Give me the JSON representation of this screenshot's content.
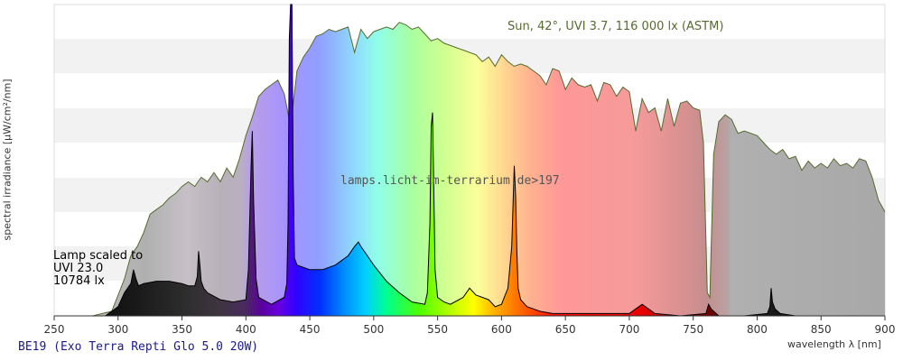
{
  "chart_data": {
    "type": "area",
    "title": "",
    "xlabel": "wavelength λ [nm]",
    "ylabel": "spectral irradiance [µW/cm²/nm]",
    "xlim": [
      250,
      900
    ],
    "x_ticks": [
      250,
      300,
      350,
      400,
      450,
      500,
      550,
      600,
      650,
      700,
      750,
      800,
      850,
      900
    ],
    "grid": "horizontal bands",
    "annotations": {
      "sun": "Sun, 42°, UVI 3.7, 116 000 lx (ASTM)",
      "watermark": "lamps.licht-im-terrarium.de>197",
      "lamp_lines": [
        "Lamp scaled to",
        "UVI 23.0",
        "10784 lx"
      ],
      "caption": "BE19 (Exo Terra Repti Glo 5.0 20W)"
    },
    "series": [
      {
        "name": "Sun, 42°, UVI 3.7, 116 000 lx (ASTM)",
        "color": "#556b2f",
        "x": [
          250,
          280,
          295,
          300,
          305,
          310,
          315,
          320,
          325,
          330,
          335,
          340,
          345,
          350,
          355,
          360,
          365,
          370,
          375,
          380,
          385,
          390,
          395,
          400,
          405,
          410,
          415,
          420,
          425,
          430,
          435,
          440,
          445,
          450,
          455,
          460,
          465,
          470,
          475,
          480,
          485,
          490,
          495,
          500,
          505,
          510,
          515,
          520,
          525,
          530,
          535,
          540,
          545,
          550,
          555,
          560,
          565,
          570,
          575,
          580,
          585,
          590,
          595,
          600,
          605,
          610,
          615,
          620,
          625,
          630,
          635,
          640,
          645,
          650,
          655,
          660,
          665,
          670,
          675,
          680,
          685,
          690,
          695,
          700,
          705,
          710,
          715,
          720,
          725,
          730,
          735,
          740,
          745,
          750,
          755,
          758,
          761,
          763,
          766,
          770,
          775,
          780,
          785,
          790,
          795,
          800,
          805,
          810,
          815,
          820,
          825,
          830,
          835,
          840,
          845,
          850,
          855,
          860,
          865,
          870,
          875,
          880,
          885,
          890,
          895,
          900
        ],
        "values": [
          0,
          0,
          2,
          9,
          16,
          26,
          30,
          36,
          44,
          46,
          48,
          51,
          53,
          56,
          58,
          56,
          60,
          58,
          62,
          58,
          64,
          60,
          68,
          78,
          86,
          95,
          98,
          100,
          102,
          96,
          82,
          106,
          112,
          116,
          121,
          122,
          124,
          123,
          124,
          125,
          114,
          124,
          120,
          123,
          124,
          125,
          124,
          127,
          126,
          124,
          125,
          122,
          119,
          120,
          118,
          117,
          116,
          115,
          114,
          113,
          110,
          112,
          108,
          113,
          110,
          108,
          109,
          108,
          106,
          104,
          100,
          107,
          106,
          98,
          103,
          100,
          99,
          100,
          93,
          101,
          100,
          95,
          99,
          97,
          80,
          94,
          88,
          90,
          80,
          94,
          82,
          92,
          93,
          90,
          89,
          75,
          10,
          8,
          70,
          84,
          87,
          85,
          79,
          80,
          79,
          78,
          75,
          72,
          70,
          72,
          68,
          69,
          63,
          67,
          64,
          66,
          64,
          68,
          65,
          66,
          64,
          68,
          67,
          60,
          50,
          45
        ]
      },
      {
        "name": "BE19 (Exo Terra Repti Glo 5.0 20W)",
        "color": "#000000",
        "x": [
          250,
          290,
          300,
          305,
          310,
          312,
          314,
          316,
          320,
          330,
          340,
          350,
          355,
          360,
          362,
          363,
          364,
          365,
          367,
          370,
          380,
          390,
          400,
          402,
          404,
          405,
          406,
          408,
          410,
          420,
          430,
          432,
          433,
          434,
          435,
          436,
          437,
          438,
          440,
          450,
          460,
          470,
          480,
          485,
          488,
          490,
          495,
          500,
          510,
          520,
          530,
          540,
          542,
          544,
          545,
          546,
          547,
          548,
          550,
          555,
          560,
          570,
          575,
          580,
          585,
          590,
          595,
          600,
          605,
          608,
          610,
          611,
          612,
          613,
          615,
          620,
          625,
          630,
          640,
          660,
          680,
          700,
          705,
          710,
          715,
          720,
          740,
          760,
          762,
          764,
          770,
          790,
          808,
          810,
          811,
          812,
          814,
          818,
          830,
          850,
          900
        ],
        "values": [
          0,
          0,
          4,
          10,
          14,
          20,
          16,
          13,
          14,
          15,
          15,
          14,
          13,
          13,
          17,
          28,
          22,
          15,
          12,
          10,
          7,
          6,
          7,
          20,
          64,
          80,
          50,
          16,
          8,
          5,
          8,
          14,
          40,
          120,
          240,
          200,
          60,
          25,
          22,
          20,
          20,
          22,
          26,
          30,
          32,
          30,
          26,
          22,
          15,
          10,
          6,
          5,
          10,
          40,
          82,
          88,
          55,
          20,
          8,
          6,
          5,
          8,
          12,
          9,
          8,
          7,
          4,
          5,
          12,
          30,
          65,
          52,
          28,
          12,
          7,
          4,
          3,
          2,
          1,
          1,
          1,
          1,
          3,
          5,
          3,
          1,
          0,
          1,
          5,
          3,
          0,
          0,
          1,
          4,
          12,
          6,
          3,
          1,
          0,
          0,
          0
        ]
      }
    ]
  }
}
